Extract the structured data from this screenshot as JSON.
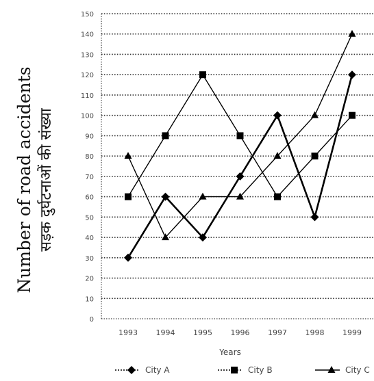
{
  "chart_data": {
    "type": "line",
    "x": [
      "1993",
      "1994",
      "1995",
      "1996",
      "1997",
      "1998",
      "1999"
    ],
    "series": [
      {
        "name": "City A",
        "marker": "diamond",
        "color": "#000000",
        "values": [
          30,
          60,
          40,
          70,
          100,
          50,
          120
        ]
      },
      {
        "name": "City B",
        "marker": "square",
        "color": "#000000",
        "values": [
          60,
          90,
          120,
          90,
          60,
          80,
          100
        ]
      },
      {
        "name": "City C",
        "marker": "triangle",
        "color": "#000000",
        "values": [
          80,
          40,
          60,
          60,
          80,
          100,
          140
        ]
      }
    ],
    "ylabel": "Number of road accidents",
    "ylabel_hindi": "सड़क दुर्घटनाओं की संख्या",
    "xlabel": "Years",
    "ylim": [
      0,
      150
    ],
    "yticks": [
      0,
      10,
      20,
      30,
      40,
      50,
      60,
      70,
      80,
      90,
      100,
      110,
      120,
      130,
      140,
      150
    ],
    "grid": "horizontal dotted",
    "legend": "bottom"
  }
}
